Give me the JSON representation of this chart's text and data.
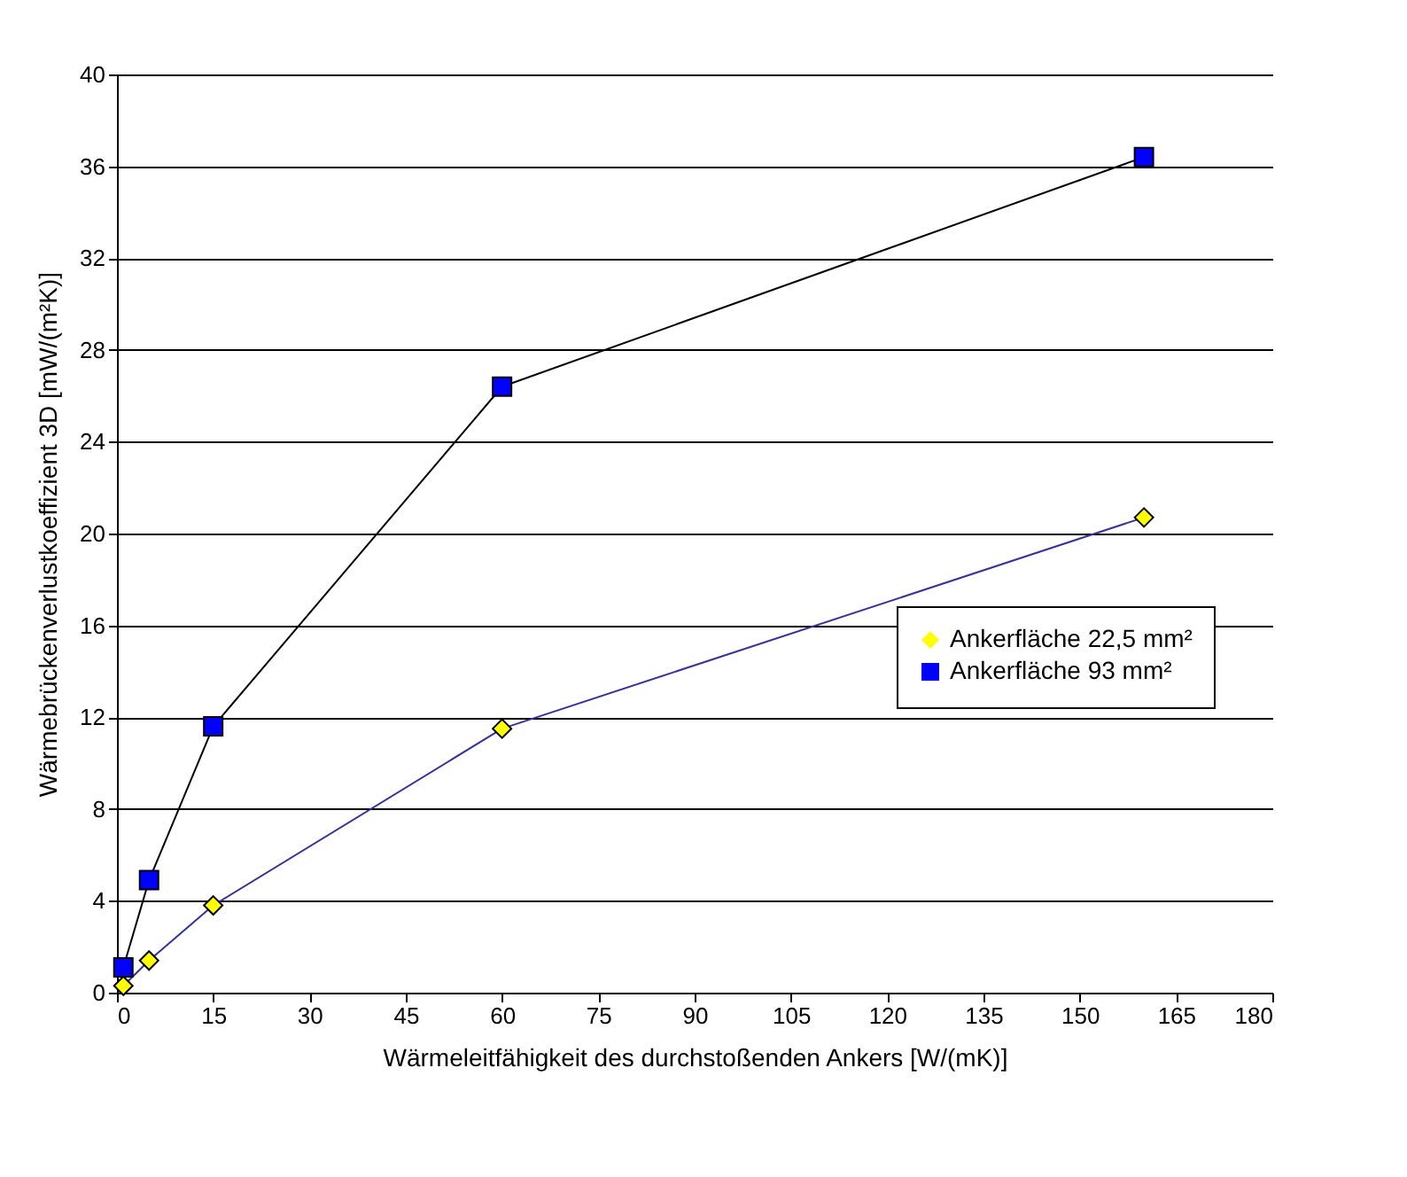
{
  "chart_data": {
    "type": "line",
    "xlabel": "Wärmeleitfähigkeit des durchstoßenden Ankers [W/(mK)]",
    "ylabel": "Wärmebrückenverlustkoeffizient 3D [mW/(m²K)]",
    "x": [
      1,
      5,
      15,
      60,
      160
    ],
    "series": [
      {
        "name": "Ankerfläche 22,5 mm²",
        "color": "#ffff00",
        "marker": "diamond",
        "values": [
          0.3,
          1.4,
          3.8,
          11.5,
          20.7
        ]
      },
      {
        "name": "Ankerfläche 93 mm²",
        "color": "#0000ff",
        "marker": "square",
        "values": [
          1.1,
          4.9,
          11.6,
          26.4,
          36.4
        ]
      }
    ],
    "xlim": [
      0,
      180
    ],
    "xticks": [
      0,
      15,
      30,
      45,
      60,
      75,
      90,
      105,
      120,
      135,
      150,
      165,
      180
    ],
    "ylim": [
      0,
      40
    ],
    "yticks": [
      0,
      4,
      8,
      12,
      16,
      20,
      24,
      28,
      32,
      36,
      40
    ],
    "grid": "y",
    "legend": "right"
  }
}
